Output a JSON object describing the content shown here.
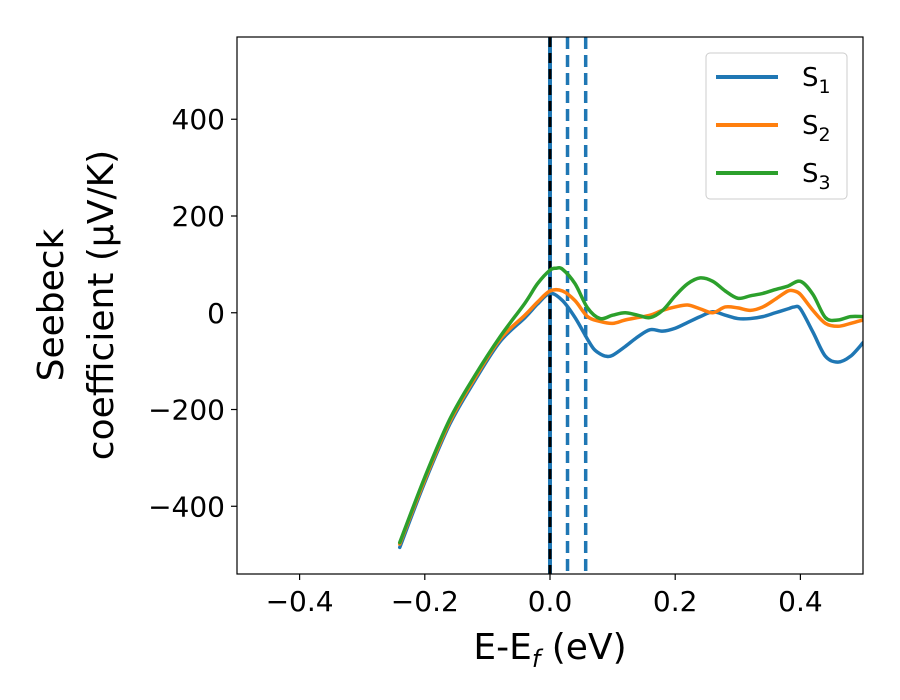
{
  "chart_data": {
    "type": "line",
    "xlabel": "E-E",
    "xlabel_sub": "f",
    "xlabel_unit": " (eV)",
    "ylabel_line1": "Seebeck",
    "ylabel_line2": "coefficient  (μV/K)",
    "xlim": [
      -0.5,
      0.5
    ],
    "ylim": [
      -540,
      570
    ],
    "xticks": [
      -0.4,
      -0.2,
      0.0,
      0.2,
      0.4
    ],
    "xtick_labels": [
      "−0.4",
      "−0.2",
      "0.0",
      "0.2",
      "0.4"
    ],
    "yticks": [
      -400,
      -200,
      0,
      200,
      400
    ],
    "ytick_labels": [
      "−400",
      "−200",
      "0",
      "200",
      "400"
    ],
    "grid": false,
    "legend_position": "top-right",
    "vertical_lines": [
      {
        "x": 0.0,
        "style": "solid-dashed",
        "color": "#1f77b4",
        "overlay_color": "#000000"
      },
      {
        "x": 0.028,
        "style": "dashed",
        "color": "#1f77b4"
      },
      {
        "x": 0.057,
        "style": "dashed",
        "color": "#1f77b4"
      }
    ],
    "series": [
      {
        "name": "S",
        "name_sub": "1",
        "color": "#1f77b4",
        "x": [
          -0.24,
          -0.2,
          -0.16,
          -0.12,
          -0.08,
          -0.04,
          -0.02,
          0.0,
          0.02,
          0.04,
          0.06,
          0.07,
          0.08,
          0.09,
          0.1,
          0.12,
          0.14,
          0.16,
          0.18,
          0.2,
          0.22,
          0.24,
          0.26,
          0.28,
          0.3,
          0.32,
          0.34,
          0.36,
          0.38,
          0.39,
          0.4,
          0.42,
          0.44,
          0.46,
          0.48,
          0.5
        ],
        "y": [
          -485,
          -350,
          -230,
          -140,
          -60,
          -10,
          18,
          40,
          25,
          -10,
          -55,
          -75,
          -85,
          -90,
          -88,
          -70,
          -50,
          -35,
          -38,
          -32,
          -20,
          -8,
          2,
          -5,
          -12,
          -12,
          -8,
          0,
          8,
          12,
          8,
          -40,
          -90,
          -102,
          -90,
          -62
        ]
      },
      {
        "name": "S",
        "name_sub": "2",
        "color": "#ff7f0e",
        "x": [
          -0.24,
          -0.2,
          -0.16,
          -0.12,
          -0.08,
          -0.04,
          -0.02,
          0.0,
          0.02,
          0.04,
          0.06,
          0.08,
          0.1,
          0.12,
          0.14,
          0.16,
          0.18,
          0.2,
          0.22,
          0.24,
          0.26,
          0.28,
          0.3,
          0.32,
          0.34,
          0.36,
          0.38,
          0.39,
          0.4,
          0.42,
          0.44,
          0.46,
          0.48,
          0.5
        ],
        "y": [
          -478,
          -345,
          -225,
          -135,
          -55,
          -5,
          22,
          45,
          45,
          25,
          -8,
          -18,
          -22,
          -15,
          -10,
          -5,
          5,
          12,
          16,
          8,
          0,
          12,
          10,
          5,
          12,
          28,
          45,
          45,
          38,
          5,
          -22,
          -28,
          -22,
          -15
        ]
      },
      {
        "name": "S",
        "name_sub": "3",
        "color": "#2ca02c",
        "x": [
          -0.24,
          -0.2,
          -0.16,
          -0.12,
          -0.08,
          -0.04,
          -0.02,
          0.0,
          0.01,
          0.02,
          0.04,
          0.06,
          0.08,
          0.1,
          0.12,
          0.14,
          0.16,
          0.18,
          0.2,
          0.22,
          0.24,
          0.26,
          0.28,
          0.3,
          0.32,
          0.34,
          0.36,
          0.38,
          0.4,
          0.42,
          0.44,
          0.46,
          0.48,
          0.5
        ],
        "y": [
          -475,
          -340,
          -220,
          -130,
          -50,
          20,
          60,
          88,
          92,
          90,
          60,
          10,
          -12,
          -5,
          0,
          -5,
          -10,
          5,
          35,
          60,
          72,
          65,
          45,
          30,
          35,
          40,
          48,
          55,
          65,
          38,
          -10,
          -15,
          -8,
          -8
        ]
      }
    ]
  }
}
